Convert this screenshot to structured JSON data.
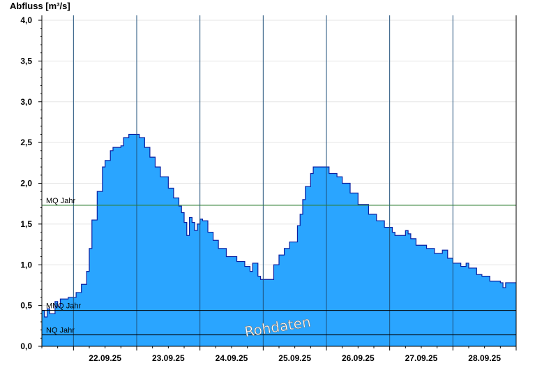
{
  "chart_data": {
    "type": "area",
    "ylabel": "Abfluss [m³/s]",
    "ylim": [
      0,
      4.06
    ],
    "y_ticks": [
      "0,0",
      "0,5",
      "1,0",
      "1,5",
      "2,0",
      "2,5",
      "3,0",
      "3,5",
      "4,0"
    ],
    "y_tick_values": [
      0,
      0.5,
      1.0,
      1.5,
      2.0,
      2.5,
      3.0,
      3.5,
      4.0
    ],
    "x_start": "21.09.25 12:00",
    "x_end": "28.09.25 24:00",
    "x_ticks": [
      "22.09.25",
      "23.09.25",
      "24.09.25",
      "25.09.25",
      "26.09.25",
      "27.09.25",
      "28.09.25"
    ],
    "grid": true,
    "series": [
      {
        "values": [
          [
            "21.09.25 12:00",
            0.44
          ],
          [
            "21.09.25 13:00",
            0.36
          ],
          [
            "21.09.25 14:00",
            0.46
          ],
          [
            "21.09.25 15:00",
            0.4
          ],
          [
            "21.09.25 17:00",
            0.55
          ],
          [
            "21.09.25 18:00",
            0.49
          ],
          [
            "21.09.25 19:00",
            0.58
          ],
          [
            "21.09.25 22:00",
            0.6
          ],
          [
            "22.09.25 01:00",
            0.66
          ],
          [
            "22.09.25 03:00",
            0.76
          ],
          [
            "22.09.25 05:00",
            0.92
          ],
          [
            "22.09.25 06:00",
            1.2
          ],
          [
            "22.09.25 07:00",
            1.55
          ],
          [
            "22.09.25 09:00",
            1.9
          ],
          [
            "22.09.25 11:00",
            2.2
          ],
          [
            "22.09.25 12:00",
            2.28
          ],
          [
            "22.09.25 14:00",
            2.4
          ],
          [
            "22.09.25 15:00",
            2.44
          ],
          [
            "22.09.25 18:00",
            2.46
          ],
          [
            "22.09.25 19:00",
            2.56
          ],
          [
            "22.09.25 21:00",
            2.6
          ],
          [
            "22.09.25 24:00",
            2.6
          ],
          [
            "23.09.25 01:00",
            2.56
          ],
          [
            "23.09.25 03:00",
            2.44
          ],
          [
            "23.09.25 05:00",
            2.32
          ],
          [
            "23.09.25 07:00",
            2.2
          ],
          [
            "23.09.25 09:00",
            2.08
          ],
          [
            "23.09.25 12:00",
            1.94
          ],
          [
            "23.09.25 14:00",
            1.82
          ],
          [
            "23.09.25 16:00",
            1.72
          ],
          [
            "23.09.25 17:00",
            1.64
          ],
          [
            "23.09.25 18:00",
            1.52
          ],
          [
            "23.09.25 19:00",
            1.36
          ],
          [
            "23.09.25 20:00",
            1.58
          ],
          [
            "23.09.25 21:00",
            1.52
          ],
          [
            "23.09.25 22:00",
            1.42
          ],
          [
            "23.09.25 23:00",
            1.5
          ],
          [
            "24.09.25 00:00",
            1.56
          ],
          [
            "24.09.25 01:00",
            1.54
          ],
          [
            "24.09.25 03:00",
            1.4
          ],
          [
            "24.09.25 05:00",
            1.3
          ],
          [
            "24.09.25 07:00",
            1.2
          ],
          [
            "24.09.25 10:00",
            1.1
          ],
          [
            "24.09.25 14:00",
            1.04
          ],
          [
            "24.09.25 17:00",
            0.98
          ],
          [
            "24.09.25 19:00",
            0.92
          ],
          [
            "24.09.25 20:00",
            1.02
          ],
          [
            "24.09.25 22:00",
            0.86
          ],
          [
            "24.09.25 23:00",
            0.82
          ],
          [
            "25.09.25 00:00",
            0.82
          ],
          [
            "25.09.25 01:00",
            0.82
          ],
          [
            "25.09.25 02:00",
            0.82
          ],
          [
            "25.09.25 04:00",
            1.0
          ],
          [
            "25.09.25 06:00",
            1.12
          ],
          [
            "25.09.25 08:00",
            1.2
          ],
          [
            "25.09.25 10:00",
            1.28
          ],
          [
            "25.09.25 13:00",
            1.48
          ],
          [
            "25.09.25 14:00",
            1.62
          ],
          [
            "25.09.25 15:00",
            1.8
          ],
          [
            "25.09.25 16:00",
            1.96
          ],
          [
            "25.09.25 18:00",
            2.12
          ],
          [
            "25.09.25 19:00",
            2.2
          ],
          [
            "25.09.25 24:00",
            2.2
          ],
          [
            "26.09.25 01:00",
            2.12
          ],
          [
            "26.09.25 04:00",
            2.08
          ],
          [
            "26.09.25 06:00",
            2.0
          ],
          [
            "26.09.25 09:00",
            1.88
          ],
          [
            "26.09.25 12:00",
            1.74
          ],
          [
            "26.09.25 16:00",
            1.62
          ],
          [
            "26.09.25 19:00",
            1.54
          ],
          [
            "26.09.25 22:00",
            1.46
          ],
          [
            "27.09.25 01:00",
            1.4
          ],
          [
            "27.09.25 02:00",
            1.36
          ],
          [
            "27.09.25 05:00",
            1.36
          ],
          [
            "27.09.25 06:00",
            1.42
          ],
          [
            "27.09.25 07:00",
            1.38
          ],
          [
            "27.09.25 08:00",
            1.32
          ],
          [
            "27.09.25 10:00",
            1.24
          ],
          [
            "27.09.25 14:00",
            1.2
          ],
          [
            "27.09.25 17:00",
            1.14
          ],
          [
            "27.09.25 19:00",
            1.14
          ],
          [
            "27.09.25 20:00",
            1.18
          ],
          [
            "27.09.25 22:00",
            1.08
          ],
          [
            "28.09.25 00:00",
            1.02
          ],
          [
            "28.09.25 03:00",
            0.98
          ],
          [
            "28.09.25 05:00",
            1.02
          ],
          [
            "28.09.25 06:00",
            0.96
          ],
          [
            "28.09.25 09:00",
            0.88
          ],
          [
            "28.09.25 11:00",
            0.86
          ],
          [
            "28.09.25 14:00",
            0.8
          ],
          [
            "28.09.25 18:00",
            0.78
          ],
          [
            "28.09.25 19:00",
            0.72
          ],
          [
            "28.09.25 20:00",
            0.78
          ],
          [
            "28.09.25 24:00",
            0.78
          ]
        ]
      }
    ],
    "reference_lines": [
      {
        "label": "MQ Jahr",
        "value": 1.73,
        "color": "#2e7d32"
      },
      {
        "label": "MNQ Jahr",
        "value": 0.44,
        "color": "#000000"
      },
      {
        "label": "NQ Jahr",
        "value": 0.14,
        "color": "#000000"
      }
    ],
    "watermark": "Rohdaten",
    "colors": {
      "fill": "#2aa5ff",
      "outline": "#0a1fa0",
      "day_lines": "#1e4f7a",
      "grid": "#e6e6e6"
    }
  }
}
